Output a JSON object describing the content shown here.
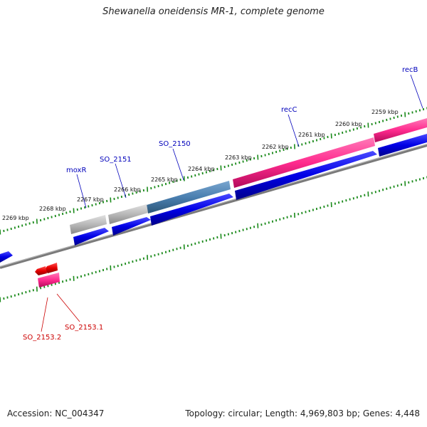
{
  "title": "Shewanella oneidensis MR-1, complete genome",
  "footer": {
    "accession": "Accession: NC_004347",
    "stats": "Topology: circular; Length: 4,969,803 bp; Genes: 4,448"
  },
  "scale_labels": [
    "2259 kbp",
    "2260 kbp",
    "2261 kbp",
    "2262 kbp",
    "2263 kbp",
    "2264 kbp",
    "2265 kbp",
    "2266 kbp",
    "2267 kbp",
    "2268 kbp",
    "2269 kbp"
  ],
  "gene_labels_top": [
    "recB",
    "recC",
    "SO_2150",
    "SO_2151",
    "moxR"
  ],
  "gene_labels_bottom": [
    "SO_2153.1",
    "SO_2153.2"
  ],
  "colors": {
    "forward_cds": "#0000e6",
    "rRNA_like": "#e0197a",
    "gene_pink": "#ff3f9a",
    "gene_steel": "#4a7fb0",
    "gene_gray": "#b8b8b8",
    "reverse_feature": "#e60000",
    "tick": "#1a8a1a",
    "backbone": "#888888",
    "label_blue": "#0000bb",
    "label_red": "#cc0000"
  }
}
